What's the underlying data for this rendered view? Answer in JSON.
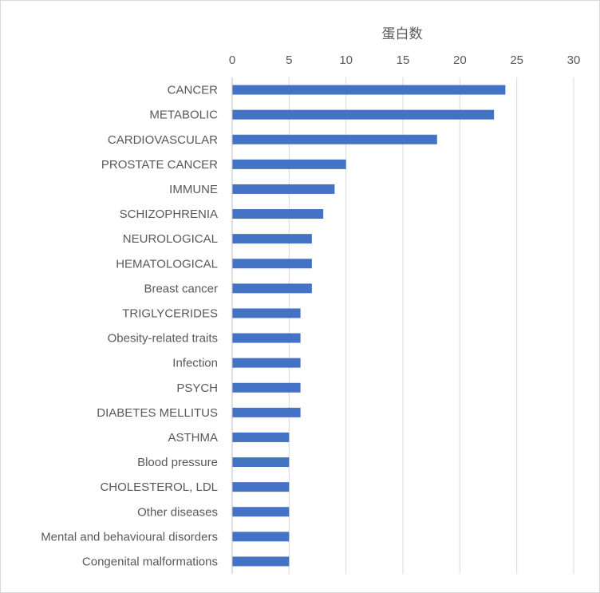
{
  "chart_data": {
    "type": "bar",
    "orientation": "horizontal",
    "title": "",
    "xlabel": "蛋白数",
    "ylabel": "",
    "xlim": [
      0,
      30
    ],
    "x_ticks": [
      0,
      5,
      10,
      15,
      20,
      25,
      30
    ],
    "x_axis_position": "top",
    "grid": true,
    "legend": "none",
    "bar_color": "#4472C4",
    "categories": [
      "CANCER",
      "METABOLIC",
      "CARDIOVASCULAR",
      "PROSTATE CANCER",
      "IMMUNE",
      "SCHIZOPHRENIA",
      "NEUROLOGICAL",
      "HEMATOLOGICAL",
      "Breast cancer",
      "TRIGLYCERIDES",
      "Obesity-related traits",
      "Infection",
      "PSYCH",
      "DIABETES MELLITUS",
      "ASTHMA",
      "Blood pressure",
      "CHOLESTEROL, LDL",
      "Other diseases",
      "Mental and behavioural disorders",
      "Congenital malformations"
    ],
    "values": [
      24,
      23,
      18,
      10,
      9,
      8,
      7,
      7,
      7,
      6,
      6,
      6,
      6,
      6,
      5,
      5,
      5,
      5,
      5,
      5
    ]
  }
}
